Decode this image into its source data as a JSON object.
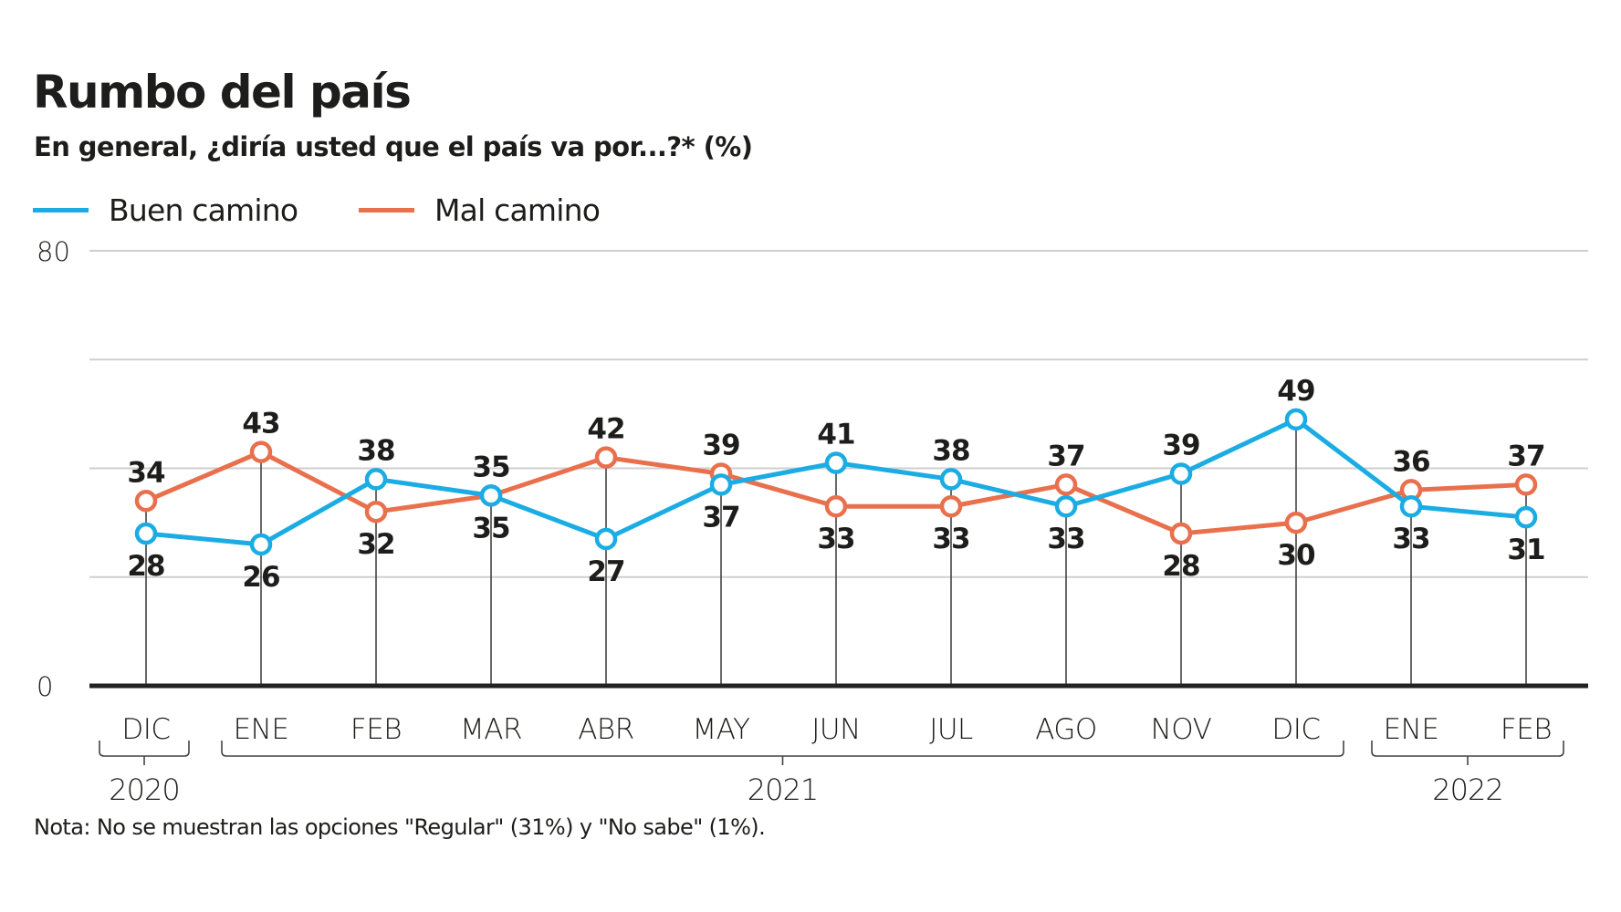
{
  "title": "Rumbo del país",
  "subtitle": "En general, ¿diría usted que el país va por...?*  (%)",
  "note": "Nota: No se muestran las opciones \"Regular\" (31%) y \"No sabe\" (1%).",
  "colors": {
    "buen_camino": "#1AACE3",
    "mal_camino": "#E8704D",
    "axis": "#222222",
    "grid": "#CFCFCF",
    "stem": "#444444",
    "text": "#1d1d1b"
  },
  "chart_data": {
    "type": "line",
    "title": "Rumbo del país",
    "subtitle": "En general, ¿diría usted que el país va por...?*  (%)",
    "xlabel": "",
    "ylabel": "%",
    "ylim": [
      0,
      80
    ],
    "yticks": [
      0,
      20,
      40,
      60,
      80
    ],
    "ytick_labels_shown": [
      "0",
      "80"
    ],
    "grid": true,
    "legend_position": "top-left",
    "categories": [
      "DIC",
      "ENE",
      "FEB",
      "MAR",
      "ABR",
      "MAY",
      "JUN",
      "JUL",
      "AGO",
      "NOV",
      "DIC",
      "ENE",
      "FEB"
    ],
    "year_groups": [
      {
        "label": "2020",
        "start": 0,
        "end": 0
      },
      {
        "label": "2021",
        "start": 1,
        "end": 10
      },
      {
        "label": "2022",
        "start": 11,
        "end": 12
      }
    ],
    "series": [
      {
        "name": "Buen camino",
        "color_key": "buen_camino",
        "values": [
          28,
          26,
          38,
          35,
          27,
          37,
          41,
          38,
          33,
          39,
          49,
          33,
          31
        ]
      },
      {
        "name": "Mal camino",
        "color_key": "mal_camino",
        "values": [
          34,
          43,
          32,
          35,
          42,
          39,
          33,
          33,
          37,
          28,
          30,
          36,
          37
        ]
      }
    ]
  }
}
